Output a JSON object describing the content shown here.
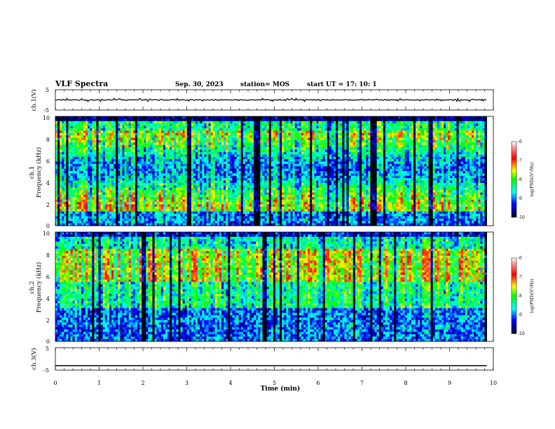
{
  "header": {
    "title": "VLF Spectra",
    "date": "Sep. 30, 2023",
    "station": "station= MOS",
    "start_ut": "start  UT =   17: 10: 1"
  },
  "chart_data": [
    {
      "id": "ch1_waveform",
      "type": "line",
      "ylabel": "ch.1(V)",
      "ylim": [
        -5,
        5
      ],
      "y_ticks": [
        "5",
        "-5"
      ],
      "xlim": [
        0,
        10
      ],
      "baseline_value": 0
    },
    {
      "id": "ch1_spectrogram",
      "type": "heatmap",
      "ylabel_line1": "ch.1",
      "ylabel_line2": "Frequency (kHz)",
      "ylim": [
        0,
        10
      ],
      "y_ticks": [
        "10",
        "8",
        "6",
        "4",
        "2",
        "0"
      ],
      "xlim": [
        0,
        10
      ],
      "data_extent_x": 9.85,
      "colorbar": {
        "label": "log(PSD)(V²/Hz)",
        "range": [
          -10,
          -6
        ],
        "ticks": [
          "-6",
          "-7",
          "-8",
          "-9",
          "-10"
        ]
      }
    },
    {
      "id": "ch2_spectrogram",
      "type": "heatmap",
      "ylabel_line1": "ch.2",
      "ylabel_line2": "Frequency (kHz)",
      "ylim": [
        0,
        10
      ],
      "y_ticks": [
        "10",
        "8",
        "6",
        "4",
        "2",
        "0"
      ],
      "xlim": [
        0,
        10
      ],
      "data_extent_x": 9.85,
      "colorbar": {
        "label": "log(PSD)(V²/Hz)",
        "range": [
          -10,
          -6
        ],
        "ticks": [
          "-6",
          "-7",
          "-8",
          "-9",
          "-10"
        ]
      }
    },
    {
      "id": "ch3_waveform",
      "type": "line",
      "ylabel": "ch.3(V)",
      "ylim": [
        -5,
        5
      ],
      "y_ticks": [
        "5",
        "-5"
      ],
      "xlim": [
        0,
        10
      ],
      "baseline_value": -3
    }
  ],
  "x_axis": {
    "label": "Time  (min)",
    "ticks": [
      "0",
      "1",
      "2",
      "3",
      "4",
      "5",
      "6",
      "7",
      "8",
      "9",
      "10"
    ]
  },
  "colors": {
    "colormap": [
      "#000000",
      "#0000ff",
      "#00ffff",
      "#00ff00",
      "#ffff00",
      "#ff0000",
      "#ffffff"
    ]
  }
}
